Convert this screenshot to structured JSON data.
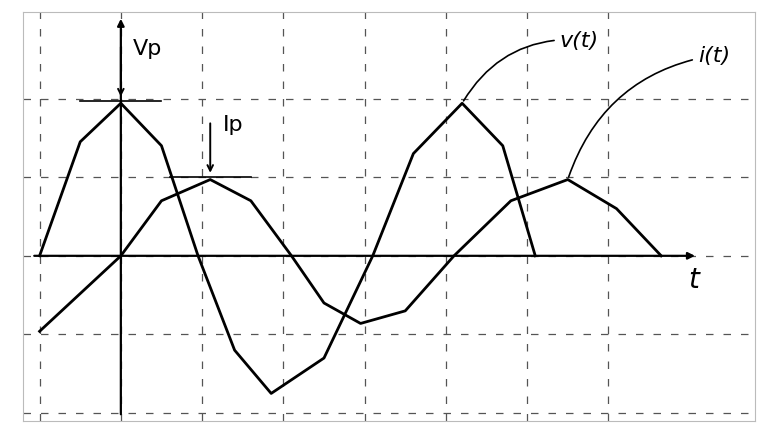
{
  "chart_data": {
    "type": "line",
    "x_label": "t",
    "series": [
      {
        "name": "v(t)",
        "color": "#000000",
        "line_style": "solid",
        "x": [
          -1,
          -0.5,
          0,
          0.5,
          0.95,
          1.4,
          1.85,
          2.5,
          3.1,
          3.6,
          4.2,
          4.7,
          5.1
        ],
        "values": [
          0,
          1.45,
          1.94,
          1.4,
          0,
          -1.2,
          -1.75,
          -1.3,
          0,
          1.3,
          1.94,
          1.4,
          0
        ]
      },
      {
        "name": "i(t)",
        "color": "#000000",
        "line_style": "solid",
        "x": [
          -1,
          0,
          0.5,
          1.1,
          1.6,
          2.1,
          2.5,
          2.95,
          3.5,
          4.1,
          4.8,
          5.5,
          6.1,
          6.65
        ],
        "values": [
          -0.96,
          0,
          0.7,
          0.97,
          0.7,
          0,
          -0.6,
          -0.86,
          -0.7,
          0,
          0.7,
          0.97,
          0.6,
          0
        ]
      }
    ],
    "annotations": [
      {
        "text": "Ip",
        "target": "i(t)"
      },
      {
        "text": "Vp",
        "target": "v(t)"
      }
    ],
    "xlim": [
      -1.2,
      7.8
    ],
    "ylim": [
      -2.1,
      3.1
    ],
    "xticks": [
      -1,
      0,
      1,
      2,
      3,
      4,
      5,
      6
    ],
    "yticks": [
      -2,
      -1,
      0,
      1,
      2
    ],
    "grid": true,
    "tick_labels": false
  }
}
